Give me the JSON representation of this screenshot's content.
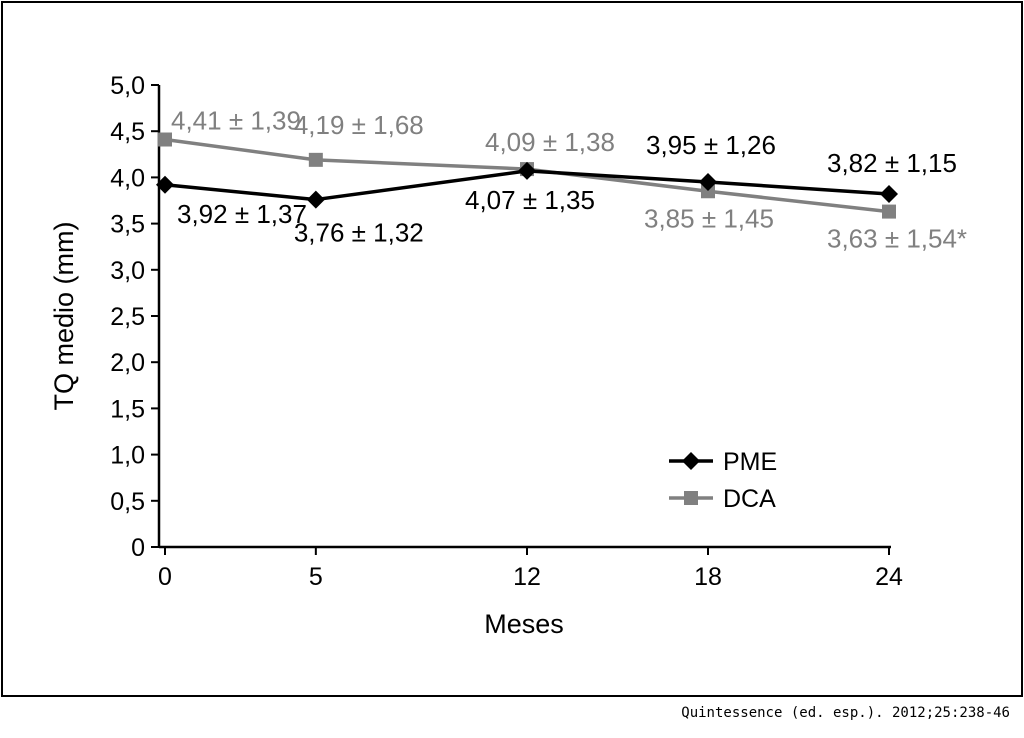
{
  "chart_data": {
    "type": "line",
    "xlabel": "Meses",
    "ylabel": "TQ medio (mm)",
    "x": [
      0,
      5,
      12,
      18,
      24
    ],
    "x_tick_labels": [
      "0",
      "5",
      "12",
      "18",
      "24"
    ],
    "ylim": [
      0,
      5
    ],
    "y_tick_labels": [
      "0",
      "0,5",
      "1,0",
      "1,5",
      "2,0",
      "2,5",
      "3,0",
      "3,5",
      "4,0",
      "4,5",
      "5,0"
    ],
    "grid": false,
    "legend_position": "bottom-right",
    "series": [
      {
        "name": "PME",
        "color": "#000000",
        "marker": "diamond",
        "values": [
          3.92,
          3.76,
          4.07,
          3.95,
          3.82
        ],
        "labels": [
          "3,92 ± 1,37",
          "3,76 ± 1,32",
          "4,07 ± 1,35",
          "3,95 ± 1,26",
          "3,82 ± 1,15"
        ]
      },
      {
        "name": "DCA",
        "color": "#808080",
        "marker": "square",
        "values": [
          4.41,
          4.19,
          4.09,
          3.85,
          3.63
        ],
        "labels": [
          "4,41 ± 1,39",
          "4,19 ± 1,68",
          "4,09 ± 1,38",
          "3,85 ± 1,45",
          "3,63 ± 1,54*"
        ]
      }
    ]
  },
  "source": "Quintessence (ed. esp.). 2012;25:238-46"
}
